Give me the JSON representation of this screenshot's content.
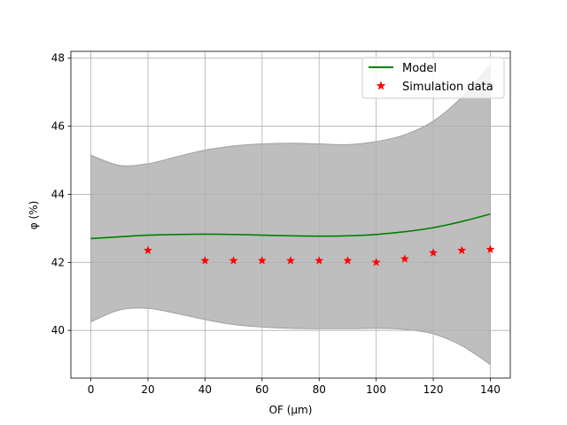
{
  "chart_data": {
    "type": "line",
    "title": "",
    "xlabel": "OF (μm)",
    "ylabel": "φ (%)",
    "xlim": [
      -7,
      147
    ],
    "ylim": [
      38.6,
      48.2
    ],
    "xticks": [
      0,
      20,
      40,
      60,
      80,
      100,
      120,
      140
    ],
    "yticks": [
      40,
      42,
      44,
      46,
      48
    ],
    "grid": true,
    "legend_position": "top-right",
    "model": {
      "name": "Model",
      "color": "#008000",
      "x": [
        0,
        10,
        20,
        30,
        40,
        50,
        60,
        70,
        80,
        90,
        100,
        110,
        120,
        130,
        140
      ],
      "y": [
        42.7,
        42.75,
        42.8,
        42.82,
        42.83,
        42.82,
        42.8,
        42.78,
        42.77,
        42.78,
        42.82,
        42.9,
        43.02,
        43.2,
        43.42
      ]
    },
    "uncertainty_band": {
      "color": "#bebebe",
      "x": [
        0,
        10,
        20,
        30,
        40,
        50,
        60,
        70,
        80,
        90,
        100,
        110,
        120,
        130,
        140
      ],
      "upper": [
        45.15,
        44.85,
        44.9,
        45.1,
        45.3,
        45.42,
        45.48,
        45.5,
        45.48,
        45.46,
        45.55,
        45.75,
        46.15,
        46.85,
        47.8
      ],
      "lower": [
        40.25,
        40.6,
        40.65,
        40.5,
        40.32,
        40.17,
        40.1,
        40.06,
        40.05,
        40.05,
        40.06,
        40.03,
        39.9,
        39.55,
        39.0
      ]
    },
    "simulation": {
      "name": "Simulation data",
      "color": "#ff0000",
      "x": [
        20,
        40,
        50,
        60,
        70,
        80,
        90,
        100,
        110,
        120,
        130,
        140
      ],
      "y": [
        42.35,
        42.05,
        42.05,
        42.05,
        42.05,
        42.05,
        42.05,
        42.0,
        42.1,
        42.28,
        42.35,
        42.38
      ]
    }
  }
}
